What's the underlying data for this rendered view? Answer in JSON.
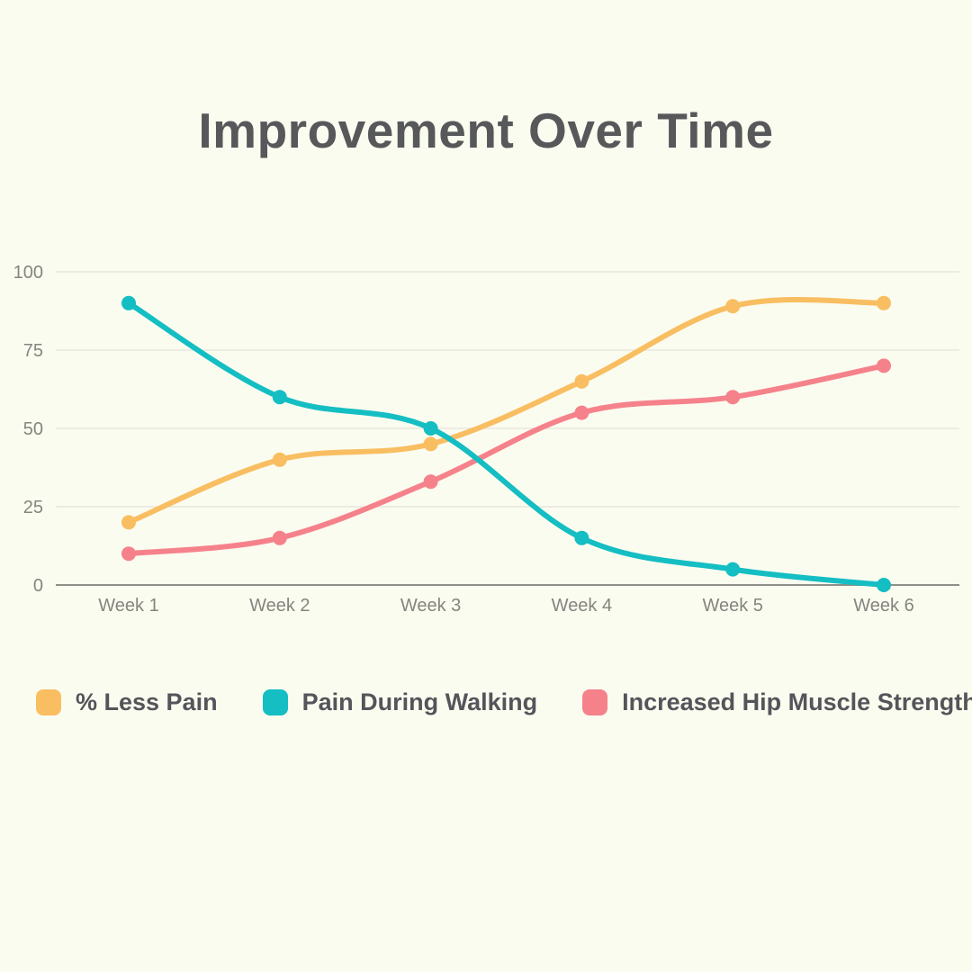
{
  "title": "Improvement Over Time",
  "chart_data": {
    "type": "line",
    "title": "Improvement Over Time",
    "x": [
      "Week 1",
      "Week 2",
      "Week 3",
      "Week 4",
      "Week 5",
      "Week 6"
    ],
    "y_ticks": [
      0,
      25,
      50,
      75,
      100
    ],
    "ylim": [
      0,
      100
    ],
    "grid": "horizontal",
    "legend_position": "bottom",
    "line_style": "smooth",
    "point_markers": true,
    "series": [
      {
        "name": "% Less Pain",
        "color": "#F9BE61",
        "values": [
          20,
          40,
          45,
          65,
          89,
          90
        ]
      },
      {
        "name": "Pain During Walking",
        "color": "#14BEC3",
        "values": [
          90,
          60,
          50,
          15,
          5,
          0
        ]
      },
      {
        "name": "Increased Hip Muscle Strength",
        "color": "#F5828B",
        "values": [
          10,
          15,
          33,
          55,
          60,
          70
        ]
      }
    ],
    "draw_order": [
      0,
      2,
      1
    ],
    "colors": {
      "background": "#FBFCF0",
      "grid_line": "#E7E7DD",
      "axis_line": "#8F8F88",
      "tick_label": "#85847F",
      "title_text": "#57585A",
      "legend_text": "#54555A"
    }
  }
}
